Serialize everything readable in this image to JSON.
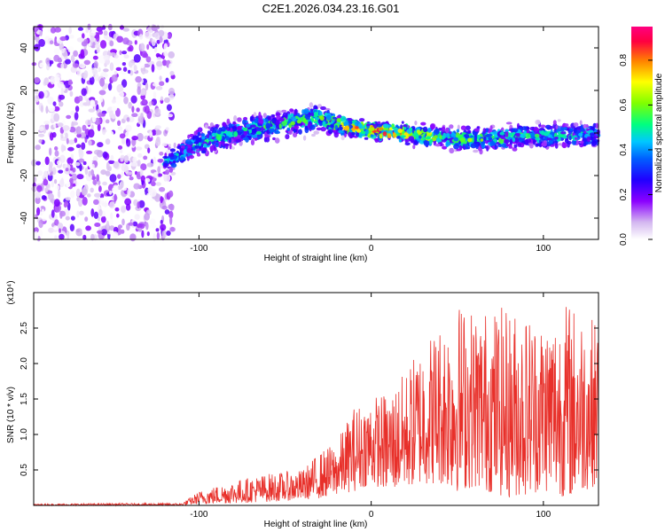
{
  "title": "C2E1.2026.034.23.16.G01",
  "chart_data": [
    {
      "type": "heatmap",
      "title": "C2E1.2026.034.23.16.G01",
      "xlabel": "Height of straight line (km)",
      "ylabel": "Frequency (Hz)",
      "xlim": [
        -196,
        132
      ],
      "ylim": [
        -50,
        50
      ],
      "xticks": [
        -100,
        0,
        100
      ],
      "xtick_labels": [
        "-100",
        "0",
        "100"
      ],
      "yticks": [
        -40,
        -20,
        0,
        20,
        40
      ],
      "ytick_labels": [
        "-40",
        "-20",
        "0",
        "20",
        "40"
      ],
      "colorbar": {
        "label": "Normalized spectral amplitude",
        "range": [
          0.0,
          0.95
        ],
        "ticks": [
          0.0,
          0.2,
          0.4,
          0.6,
          0.8
        ],
        "tick_labels": [
          "0.0",
          "0.2",
          "0.4",
          "0.6",
          "0.8"
        ],
        "colormap": [
          "#ffffff",
          "#d4b8f0",
          "#8b00ff",
          "#2000ff",
          "#0060ff",
          "#00c8ff",
          "#00ff80",
          "#80ff00",
          "#ffff00",
          "#ff8000",
          "#ff0040",
          "#ff0080"
        ]
      },
      "noise_region_x": [
        -196,
        -115
      ],
      "signal_band": {
        "x": [
          -120,
          -100,
          -80,
          -60,
          -40,
          -30,
          -20,
          0,
          20,
          40,
          60,
          80,
          100,
          132
        ],
        "center_freq": [
          -14,
          -5,
          0,
          3,
          6,
          7,
          4,
          1,
          0,
          -2,
          -3,
          -2,
          -1,
          -1
        ],
        "half_width": [
          6,
          7,
          7,
          7,
          7,
          6,
          5,
          4,
          5,
          5,
          6,
          6,
          6,
          6
        ],
        "peak_amplitude": [
          0.45,
          0.5,
          0.5,
          0.55,
          0.55,
          0.6,
          0.7,
          0.9,
          0.8,
          0.6,
          0.6,
          0.55,
          0.5,
          0.5
        ]
      }
    },
    {
      "type": "line",
      "xlabel": "Height of straight line (km)",
      "ylabel": "SNR (10 * v/v)",
      "y_multiplier": "(x10⁴)",
      "color": "#e8302a",
      "xlim": [
        -196,
        132
      ],
      "ylim": [
        0,
        3.0
      ],
      "xticks": [
        -100,
        0,
        100
      ],
      "xtick_labels": [
        "-100",
        "0",
        "100"
      ],
      "yticks": [
        0.5,
        1.0,
        1.5,
        2.0,
        2.5
      ],
      "ytick_labels": [
        "0.5",
        "1.0",
        "1.5",
        "2.0",
        "2.5"
      ],
      "envelope": {
        "x": [
          -196,
          -150,
          -110,
          -100,
          -80,
          -60,
          -40,
          -30,
          -20,
          -10,
          0,
          10,
          20,
          30,
          40,
          50,
          60,
          80,
          100,
          115,
          132
        ],
        "upper": [
          0.02,
          0.03,
          0.03,
          0.2,
          0.35,
          0.45,
          0.5,
          0.75,
          0.9,
          1.4,
          1.55,
          1.6,
          1.9,
          2.35,
          2.6,
          2.9,
          2.8,
          2.8,
          2.7,
          2.9,
          2.6
        ],
        "lower": [
          0.0,
          0.0,
          0.0,
          0.02,
          0.03,
          0.05,
          0.08,
          0.1,
          0.15,
          0.2,
          0.3,
          0.2,
          0.25,
          0.3,
          0.3,
          0.2,
          0.25,
          0.1,
          0.2,
          0.1,
          0.3
        ]
      }
    }
  ]
}
